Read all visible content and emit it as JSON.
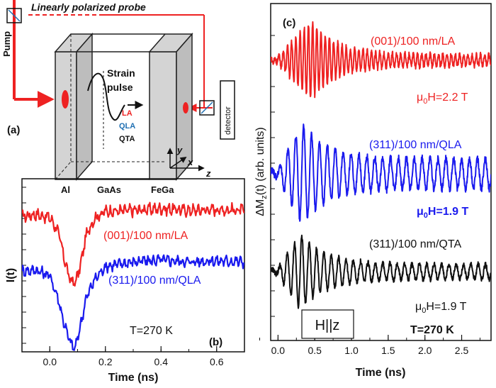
{
  "schematic": {
    "panel_label": "(a)",
    "probe_label": "Linearly polarized probe",
    "pump_label": "Pump",
    "strain_label_1": "Strain",
    "strain_label_2": "pulse",
    "wave_la": "LA",
    "wave_qla": "QLA",
    "wave_qta": "QTA",
    "detector_label": "detector",
    "layer_al": "Al",
    "layer_gaas": "GaAs",
    "layer_fega": "FeGa",
    "axis_x": "x",
    "axis_y": "y",
    "axis_z": "z",
    "colors": {
      "beam": "#ee2222",
      "qla": "#1f6fb2",
      "frame": "#222222",
      "plate": "#d4d4d4"
    }
  },
  "panel_b": {
    "panel_label": "(b)",
    "temperature_label": "T=270 K",
    "xlabel": "Time (ns)",
    "ylabel": "I(t)",
    "xticks": [
      "0.0",
      "0.2",
      "0.4",
      "0.6"
    ]
  },
  "panel_c": {
    "panel_label": "(c)",
    "temperature_label": "T=270 K",
    "field_direction_label": "H||z",
    "xlabel": "Time (ns)",
    "ylabel": "ΔM_z(t) (arb. units)",
    "xticks": [
      "0.0",
      "0.5",
      "1.0",
      "1.5",
      "2.0",
      "2.5"
    ]
  },
  "chart_data": [
    {
      "type": "line",
      "panel": "(b)",
      "xlabel": "Time (ns)",
      "ylabel": "I(t)",
      "xlim": [
        -0.1,
        0.7
      ],
      "series": [
        {
          "name": "(001)/100 nm/LA",
          "color": "#ee2222",
          "x": [
            -0.1,
            -0.05,
            0.0,
            0.03,
            0.05,
            0.07,
            0.09,
            0.11,
            0.13,
            0.16,
            0.2,
            0.3,
            0.4,
            0.5,
            0.6,
            0.7
          ],
          "y": [
            0.0,
            0.02,
            -0.01,
            -0.15,
            -0.4,
            -0.62,
            -0.68,
            -0.5,
            -0.2,
            -0.02,
            0.05,
            0.06,
            0.08,
            0.06,
            0.07,
            0.06
          ]
        },
        {
          "name": "(311)/100 nm/QLA",
          "color": "#1a1aee",
          "x": [
            -0.1,
            -0.05,
            0.0,
            0.03,
            0.05,
            0.07,
            0.09,
            0.11,
            0.13,
            0.16,
            0.2,
            0.3,
            0.4,
            0.5,
            0.6,
            0.7
          ],
          "y": [
            0.0,
            0.01,
            -0.05,
            -0.3,
            -0.55,
            -0.75,
            -0.85,
            -0.6,
            -0.3,
            -0.1,
            0.05,
            0.1,
            0.12,
            0.1,
            0.11,
            0.1
          ]
        }
      ]
    },
    {
      "type": "line",
      "panel": "(c)",
      "xlabel": "Time (ns)",
      "ylabel": "ΔM_z(t) (arb. units)",
      "xlim": [
        -0.1,
        2.9
      ],
      "series": [
        {
          "name": "(001)/100 nm/LA",
          "field": "μ0H=2.2 T",
          "color": "#ee2222",
          "frequency_ghz": 17.5,
          "envelope": {
            "t_peak_ns": 0.45,
            "peak_amplitude": 1.0,
            "tail_amplitude": 0.14
          }
        },
        {
          "name": "(311)/100 nm/QLA",
          "field": "μ0H=1.9 T",
          "color": "#1a1aee",
          "frequency_ghz": 9.3,
          "envelope": {
            "t_peak_ns": 0.33,
            "peak_amplitude": 1.0,
            "tail_amplitude": 0.3
          }
        },
        {
          "name": "(311)/100 nm/QTA",
          "field": "μ0H=1.9 T",
          "color": "#111111",
          "frequency_ghz": 10.0,
          "envelope": {
            "t_peak_ns": 0.3,
            "peak_amplitude": 1.0,
            "tail_amplitude": 0.2
          }
        }
      ]
    }
  ]
}
